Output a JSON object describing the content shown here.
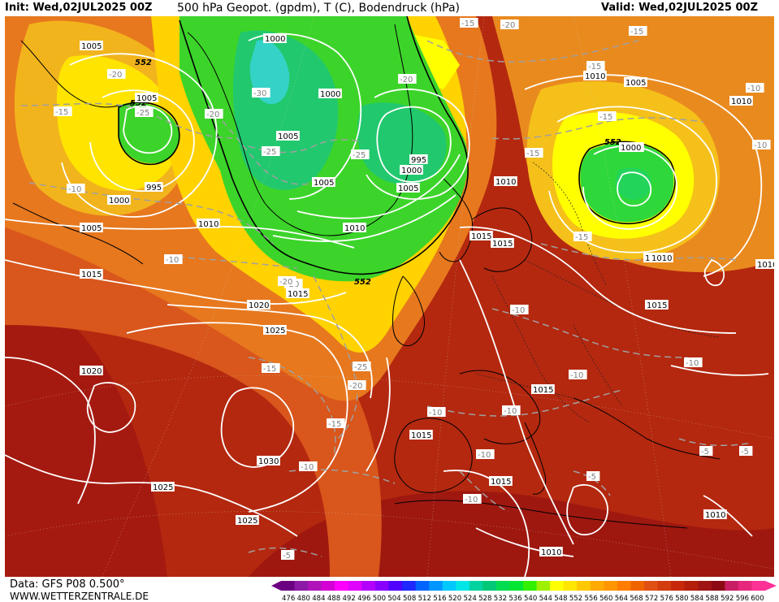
{
  "header": {
    "init": "Init: Wed,02JUL2025 00Z",
    "title": "500 hPa Geopot. (gpdm), T (C), Bodendruck (hPa)",
    "valid": "Valid: Wed,02JUL2025 00Z"
  },
  "footer": {
    "data_source": "Data: GFS P08 0.500°",
    "website": "WWW.WETTERZENTRALE.DE"
  },
  "legend": {
    "colors": [
      "#6b0080",
      "#8c1aa6",
      "#b014b8",
      "#d400d4",
      "#ff00ff",
      "#e000ff",
      "#b400ff",
      "#8a00ff",
      "#5000ff",
      "#1e28ff",
      "#0064ff",
      "#0096ff",
      "#00c8ff",
      "#00e6e6",
      "#00d2a0",
      "#00c878",
      "#00dc50",
      "#00e632",
      "#32f000",
      "#9ef000",
      "#ffff00",
      "#ffe600",
      "#ffc800",
      "#ffaa00",
      "#ff9600",
      "#ff7d00",
      "#f06400",
      "#e05014",
      "#d23c0f",
      "#c8280a",
      "#b41e0a",
      "#a01414",
      "#8c0a14",
      "#c81e64",
      "#e6287d",
      "#ff3296"
    ],
    "labels": [
      "476",
      "480",
      "484",
      "488",
      "492",
      "496",
      "500",
      "504",
      "508",
      "512",
      "516",
      "520",
      "524",
      "528",
      "532",
      "536",
      "540",
      "544",
      "548",
      "552",
      "556",
      "560",
      "564",
      "568",
      "572",
      "576",
      "580",
      "584",
      "588",
      "592",
      "596",
      "600"
    ]
  },
  "contours": {
    "geopot_label": "552",
    "pressure_labels": [
      {
        "id": "p1",
        "text": "1005"
      },
      {
        "id": "p2",
        "text": "1000"
      },
      {
        "id": "p3",
        "text": "1005"
      },
      {
        "id": "p4",
        "text": "1000"
      },
      {
        "id": "p5",
        "text": "1005"
      },
      {
        "id": "p6",
        "text": "995"
      },
      {
        "id": "p7",
        "text": "1000"
      },
      {
        "id": "p8",
        "text": "1000"
      },
      {
        "id": "p9",
        "text": "1005"
      },
      {
        "id": "p10",
        "text": "1010"
      },
      {
        "id": "p11",
        "text": "1015"
      },
      {
        "id": "p12",
        "text": "1020"
      },
      {
        "id": "p13",
        "text": "1025"
      },
      {
        "id": "p14",
        "text": "1020"
      },
      {
        "id": "p15",
        "text": "1030"
      },
      {
        "id": "p16",
        "text": "1025"
      },
      {
        "id": "p17",
        "text": "1025"
      },
      {
        "id": "p18",
        "text": "1015"
      },
      {
        "id": "p19",
        "text": "995"
      },
      {
        "id": "p20",
        "text": "1000"
      },
      {
        "id": "p21",
        "text": "1005"
      },
      {
        "id": "p22",
        "text": "1005"
      },
      {
        "id": "p23",
        "text": "1010"
      },
      {
        "id": "p24",
        "text": "1015"
      },
      {
        "id": "p25",
        "text": "1010"
      },
      {
        "id": "p26",
        "text": "1015"
      },
      {
        "id": "p27",
        "text": "1010"
      },
      {
        "id": "p28",
        "text": "1005"
      },
      {
        "id": "p29",
        "text": "1000"
      },
      {
        "id": "p30",
        "text": "1010"
      },
      {
        "id": "p31",
        "text": "1015"
      },
      {
        "id": "p32",
        "text": "1010"
      },
      {
        "id": "p33",
        "text": "1015"
      },
      {
        "id": "p34",
        "text": "1015"
      },
      {
        "id": "p35",
        "text": "1015"
      },
      {
        "id": "p36",
        "text": "1010"
      },
      {
        "id": "p37",
        "text": "1010"
      },
      {
        "id": "p38",
        "text": "1010"
      },
      {
        "id": "p39",
        "text": "1010"
      }
    ],
    "temp_labels": [
      {
        "id": "t1",
        "text": "-20"
      },
      {
        "id": "t2",
        "text": "-25"
      },
      {
        "id": "t3",
        "text": "-15"
      },
      {
        "id": "t4",
        "text": "-10"
      },
      {
        "id": "t5",
        "text": "-30"
      },
      {
        "id": "t6",
        "text": "-20"
      },
      {
        "id": "t7",
        "text": "-25"
      },
      {
        "id": "t8",
        "text": "-25"
      },
      {
        "id": "t9",
        "text": "-20"
      },
      {
        "id": "t10",
        "text": "-20"
      },
      {
        "id": "t11",
        "text": "-15"
      },
      {
        "id": "t12",
        "text": "-15"
      },
      {
        "id": "t13",
        "text": "-15"
      },
      {
        "id": "t14",
        "text": "-10"
      },
      {
        "id": "t15",
        "text": "-10"
      },
      {
        "id": "t16",
        "text": "-20"
      },
      {
        "id": "t17",
        "text": "-15"
      },
      {
        "id": "t18",
        "text": "-25"
      },
      {
        "id": "t19",
        "text": "-20"
      },
      {
        "id": "t20",
        "text": "-15"
      },
      {
        "id": "t21",
        "text": "-10"
      },
      {
        "id": "t22",
        "text": "-10"
      },
      {
        "id": "t23",
        "text": "-10"
      },
      {
        "id": "t24",
        "text": "-10"
      },
      {
        "id": "t25",
        "text": "-10"
      },
      {
        "id": "t26",
        "text": "-10"
      },
      {
        "id": "t27",
        "text": "-10"
      },
      {
        "id": "t28",
        "text": "-10"
      },
      {
        "id": "t29",
        "text": "-5"
      },
      {
        "id": "t30",
        "text": "-5"
      },
      {
        "id": "t31",
        "text": "-5"
      },
      {
        "id": "t32",
        "text": "-5"
      },
      {
        "id": "t33",
        "text": "-15"
      },
      {
        "id": "t34",
        "text": "-15"
      },
      {
        "id": "t35",
        "text": "-20"
      },
      {
        "id": "t36",
        "text": "-10"
      },
      {
        "id": "t37",
        "text": "-15"
      }
    ]
  }
}
